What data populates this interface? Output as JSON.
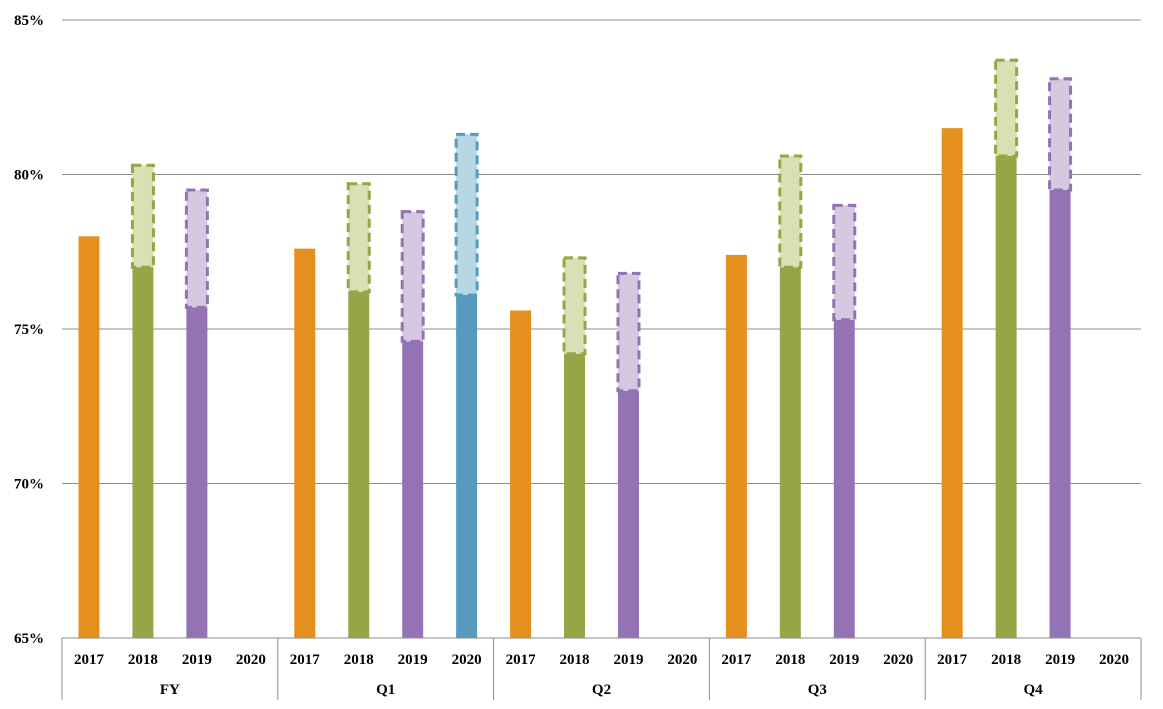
{
  "chart_data": {
    "type": "bar",
    "ylim": [
      0.65,
      0.85
    ],
    "y_ticks": [
      "65%",
      "70%",
      "75%",
      "80%",
      "85%"
    ],
    "grid": true,
    "groups": [
      {
        "label": "FY",
        "bars": [
          {
            "year": "2017",
            "value": 0.78,
            "range_top": null
          },
          {
            "year": "2018",
            "value": 0.77,
            "range_top": 0.803
          },
          {
            "year": "2019",
            "value": 0.757,
            "range_top": 0.795
          },
          {
            "year": "2020",
            "value": null,
            "range_top": null
          }
        ]
      },
      {
        "label": "Q1",
        "bars": [
          {
            "year": "2017",
            "value": 0.776,
            "range_top": null
          },
          {
            "year": "2018",
            "value": 0.762,
            "range_top": 0.797
          },
          {
            "year": "2019",
            "value": 0.746,
            "range_top": 0.788
          },
          {
            "year": "2020",
            "value": 0.761,
            "range_top": 0.813
          }
        ]
      },
      {
        "label": "Q2",
        "bars": [
          {
            "year": "2017",
            "value": 0.756,
            "range_top": null
          },
          {
            "year": "2018",
            "value": 0.742,
            "range_top": 0.773
          },
          {
            "year": "2019",
            "value": 0.73,
            "range_top": 0.768
          },
          {
            "year": "2020",
            "value": null,
            "range_top": null
          }
        ]
      },
      {
        "label": "Q3",
        "bars": [
          {
            "year": "2017",
            "value": 0.774,
            "range_top": null
          },
          {
            "year": "2018",
            "value": 0.77,
            "range_top": 0.806
          },
          {
            "year": "2019",
            "value": 0.753,
            "range_top": 0.79
          },
          {
            "year": "2020",
            "value": null,
            "range_top": null
          }
        ]
      },
      {
        "label": "Q4",
        "bars": [
          {
            "year": "2017",
            "value": 0.815,
            "range_top": null
          },
          {
            "year": "2018",
            "value": 0.806,
            "range_top": 0.837
          },
          {
            "year": "2019",
            "value": 0.795,
            "range_top": 0.831
          },
          {
            "year": "2020",
            "value": null,
            "range_top": null
          }
        ]
      }
    ],
    "colors": {
      "2017": {
        "solid": "#e58f1f"
      },
      "2018": {
        "solid": "#94a645",
        "range_fill": "#d8e1b4",
        "range_stroke": "#94a645"
      },
      "2019": {
        "solid": "#9373b3",
        "range_fill": "#d7c8e2",
        "range_stroke": "#9373b3"
      },
      "2020": {
        "solid": "#569bbe",
        "range_fill": "#b7d6e6",
        "range_stroke": "#569bbe"
      }
    }
  }
}
